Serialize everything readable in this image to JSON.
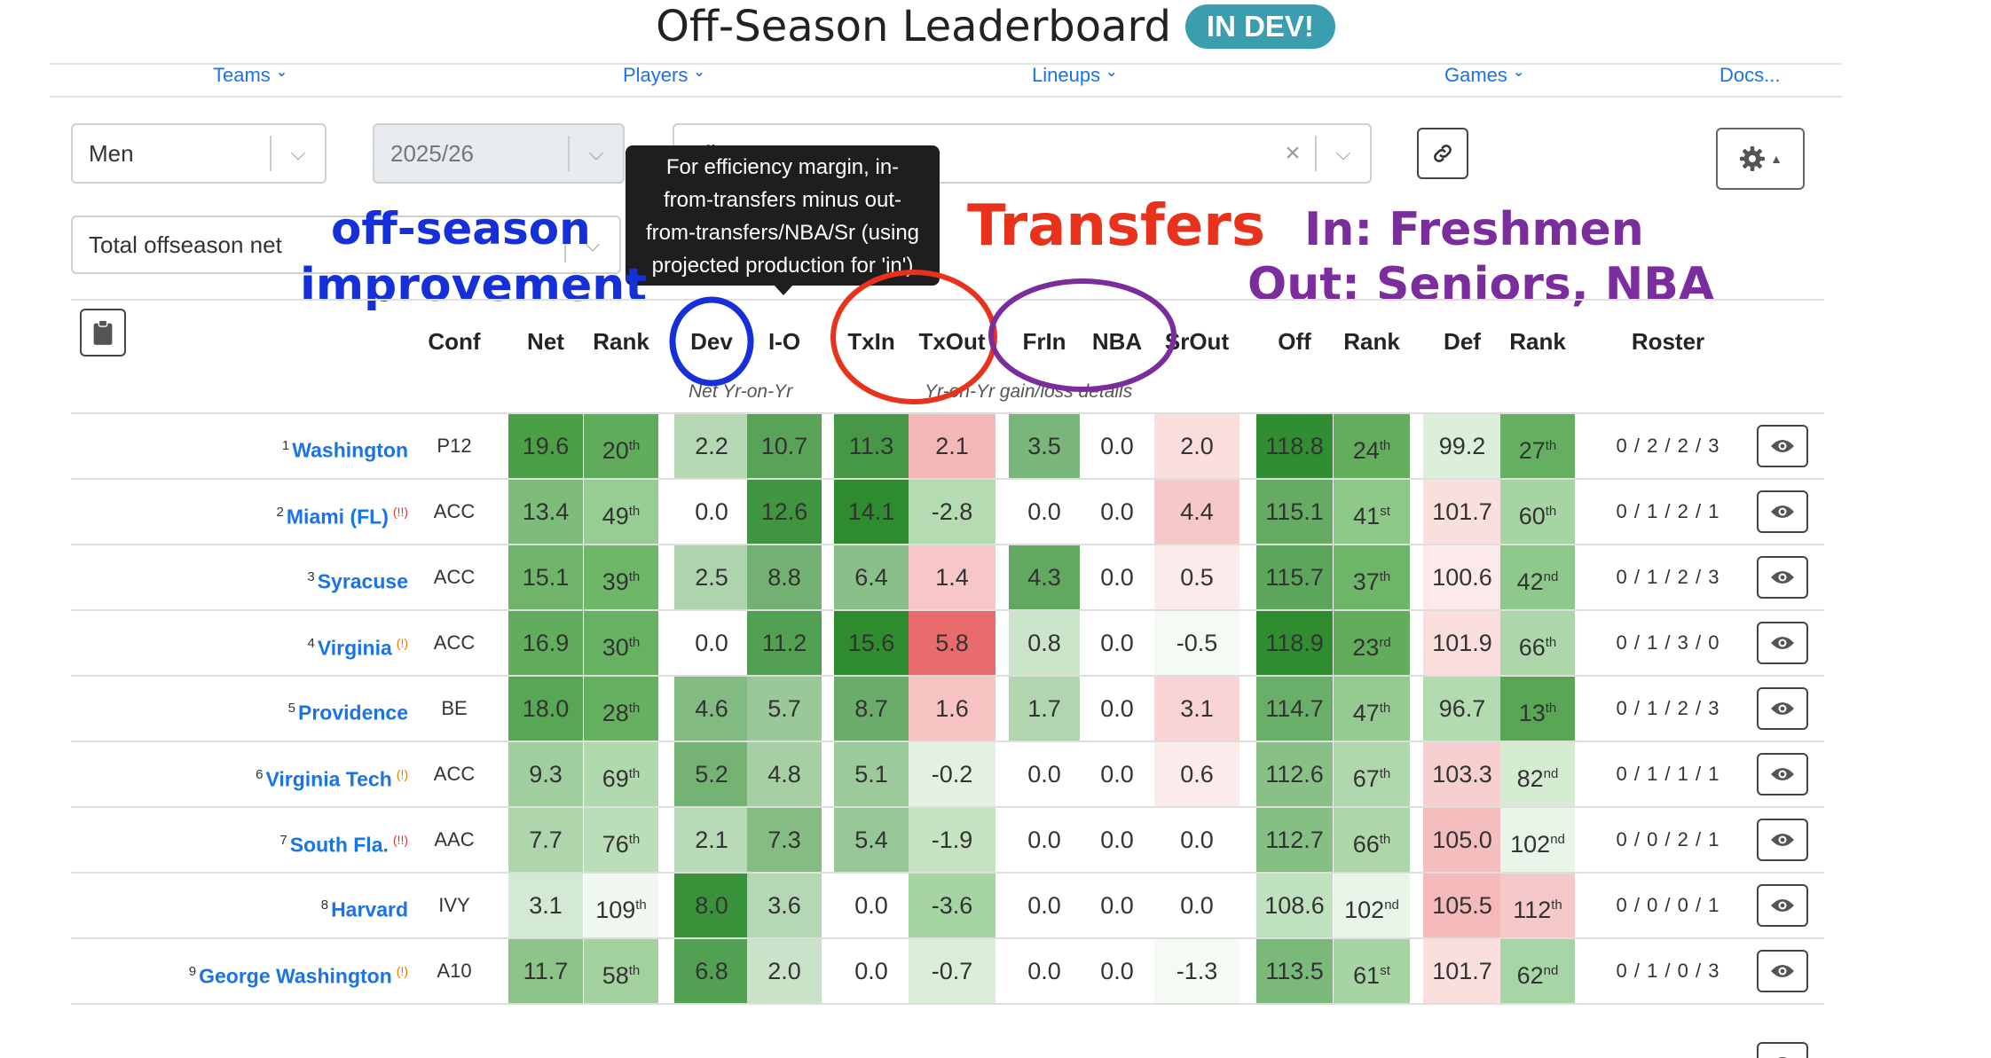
{
  "title": {
    "text": "Off-Season Leaderboard",
    "badge": "IN DEV!"
  },
  "nav": [
    {
      "label": "Teams",
      "chevron": true
    },
    {
      "label": "Players",
      "chevron": true
    },
    {
      "label": "Lineups",
      "chevron": true
    },
    {
      "label": "Games",
      "chevron": true
    },
    {
      "label": "Docs...",
      "chevron": false
    }
  ],
  "filters": {
    "gender": "Men",
    "season": "2025/26",
    "teams": "All Teams",
    "sort": "Total offseason net"
  },
  "tooltip": {
    "lines": [
      "For efficiency margin, in-",
      "from-transfers minus out-",
      "from-transfers/NBA/Sr (using",
      "projected production for 'in')"
    ]
  },
  "annotations": {
    "offseason_line1": "off-season",
    "offseason_line2": "improvement",
    "transfers": "Transfers",
    "in_out_line1": "In: Freshmen",
    "in_out_line2": "Out: Seniors, NBA",
    "colors": {
      "blue": "#1530d8",
      "red": "#e8321c",
      "purple": "#7b2d9e"
    }
  },
  "columns": [
    "Conf",
    "Net",
    "Rank",
    "Dev",
    "I-O",
    "TxIn",
    "TxOut",
    "FrIn",
    "NBA",
    "SrOut",
    "Off",
    "Rank",
    "Def",
    "Rank",
    "Roster"
  ],
  "subheaders": {
    "net": "Net Yr-on-Yr",
    "details": "Yr-on-Yr gain/loss details"
  },
  "rows": [
    {
      "rank": "1",
      "team": "Washington",
      "flag": "",
      "conf": "P12",
      "net": "19.6",
      "netrank": "20",
      "netrank_sfx": "th",
      "dev": "2.2",
      "io": "10.7",
      "txin": "11.3",
      "txout": "2.1",
      "frin": "3.5",
      "nba": "0.0",
      "srout": "2.0",
      "off": "118.8",
      "offrank": "24",
      "offrank_sfx": "th",
      "def": "99.2",
      "defrank": "27",
      "defrank_sfx": "th",
      "roster": "0 / 2 / 2 / 3"
    },
    {
      "rank": "2",
      "team": "Miami (FL)",
      "flag": "(!!)",
      "conf": "ACC",
      "net": "13.4",
      "netrank": "49",
      "netrank_sfx": "th",
      "dev": "0.0",
      "io": "12.6",
      "txin": "14.1",
      "txout": "-2.8",
      "frin": "0.0",
      "nba": "0.0",
      "srout": "4.4",
      "off": "115.1",
      "offrank": "41",
      "offrank_sfx": "st",
      "def": "101.7",
      "defrank": "60",
      "defrank_sfx": "th",
      "roster": "0 / 1 / 2 / 1"
    },
    {
      "rank": "3",
      "team": "Syracuse",
      "flag": "",
      "conf": "ACC",
      "net": "15.1",
      "netrank": "39",
      "netrank_sfx": "th",
      "dev": "2.5",
      "io": "8.8",
      "txin": "6.4",
      "txout": "1.4",
      "frin": "4.3",
      "nba": "0.0",
      "srout": "0.5",
      "off": "115.7",
      "offrank": "37",
      "offrank_sfx": "th",
      "def": "100.6",
      "defrank": "42",
      "defrank_sfx": "nd",
      "roster": "0 / 1 / 2 / 3"
    },
    {
      "rank": "4",
      "team": "Virginia",
      "flag": "(!)",
      "conf": "ACC",
      "net": "16.9",
      "netrank": "30",
      "netrank_sfx": "th",
      "dev": "0.0",
      "io": "11.2",
      "txin": "15.6",
      "txout": "5.8",
      "frin": "0.8",
      "nba": "0.0",
      "srout": "-0.5",
      "off": "118.9",
      "offrank": "23",
      "offrank_sfx": "rd",
      "def": "101.9",
      "defrank": "66",
      "defrank_sfx": "th",
      "roster": "0 / 1 / 3 / 0"
    },
    {
      "rank": "5",
      "team": "Providence",
      "flag": "",
      "conf": "BE",
      "net": "18.0",
      "netrank": "28",
      "netrank_sfx": "th",
      "dev": "4.6",
      "io": "5.7",
      "txin": "8.7",
      "txout": "1.6",
      "frin": "1.7",
      "nba": "0.0",
      "srout": "3.1",
      "off": "114.7",
      "offrank": "47",
      "offrank_sfx": "th",
      "def": "96.7",
      "defrank": "13",
      "defrank_sfx": "th",
      "roster": "0 / 1 / 2 / 3"
    },
    {
      "rank": "6",
      "team": "Virginia Tech",
      "flag": "(!)",
      "conf": "ACC",
      "net": "9.3",
      "netrank": "69",
      "netrank_sfx": "th",
      "dev": "5.2",
      "io": "4.8",
      "txin": "5.1",
      "txout": "-0.2",
      "frin": "0.0",
      "nba": "0.0",
      "srout": "0.6",
      "off": "112.6",
      "offrank": "67",
      "offrank_sfx": "th",
      "def": "103.3",
      "defrank": "82",
      "defrank_sfx": "nd",
      "roster": "0 / 1 / 1 / 1"
    },
    {
      "rank": "7",
      "team": "South Fla.",
      "flag": "(!!)",
      "conf": "AAC",
      "net": "7.7",
      "netrank": "76",
      "netrank_sfx": "th",
      "dev": "2.1",
      "io": "7.3",
      "txin": "5.4",
      "txout": "-1.9",
      "frin": "0.0",
      "nba": "0.0",
      "srout": "0.0",
      "off": "112.7",
      "offrank": "66",
      "offrank_sfx": "th",
      "def": "105.0",
      "defrank": "102",
      "defrank_sfx": "nd",
      "roster": "0 / 0 / 2 / 1"
    },
    {
      "rank": "8",
      "team": "Harvard",
      "flag": "",
      "conf": "IVY",
      "net": "3.1",
      "netrank": "109",
      "netrank_sfx": "th",
      "dev": "8.0",
      "io": "3.6",
      "txin": "0.0",
      "txout": "-3.6",
      "frin": "0.0",
      "nba": "0.0",
      "srout": "0.0",
      "off": "108.6",
      "offrank": "102",
      "offrank_sfx": "nd",
      "def": "105.5",
      "defrank": "112",
      "defrank_sfx": "th",
      "roster": "0 / 0 / 0 / 1"
    },
    {
      "rank": "9",
      "team": "George Washington",
      "flag": "(!)",
      "conf": "A10",
      "net": "11.7",
      "netrank": "58",
      "netrank_sfx": "th",
      "dev": "6.8",
      "io": "2.0",
      "txin": "0.0",
      "txout": "-0.7",
      "frin": "0.0",
      "nba": "0.0",
      "srout": "-1.3",
      "off": "113.5",
      "offrank": "61",
      "offrank_sfx": "st",
      "def": "101.7",
      "defrank": "62",
      "defrank_sfx": "nd",
      "roster": "0 / 1 / 0 / 3"
    },
    {
      "rank": "",
      "team": "",
      "flag": "",
      "conf": "",
      "net": "",
      "netrank": "",
      "netrank_sfx": "",
      "dev": "",
      "io": "",
      "txin": "",
      "txout": "",
      "frin": "",
      "nba": "",
      "srout": "",
      "off": "",
      "offrank": "",
      "offrank_sfx": "",
      "def": "",
      "defrank": "",
      "defrank_sfx": "",
      "roster": ""
    }
  ]
}
